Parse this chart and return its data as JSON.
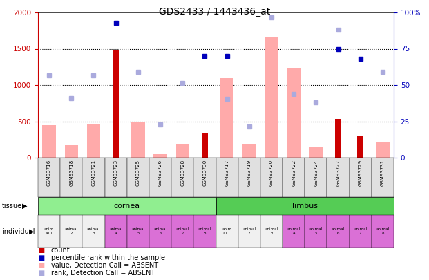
{
  "title": "GDS2433 / 1443436_at",
  "samples": [
    "GSM93716",
    "GSM93718",
    "GSM93721",
    "GSM93723",
    "GSM93725",
    "GSM93726",
    "GSM93728",
    "GSM93730",
    "GSM93717",
    "GSM93719",
    "GSM93720",
    "GSM93722",
    "GSM93724",
    "GSM93727",
    "GSM93729",
    "GSM93731"
  ],
  "pink_bars": [
    450,
    175,
    460,
    null,
    490,
    50,
    185,
    null,
    1100,
    185,
    1660,
    1230,
    155,
    null,
    null,
    220
  ],
  "red_bars": [
    null,
    null,
    null,
    1490,
    null,
    null,
    null,
    340,
    null,
    null,
    null,
    null,
    null,
    530,
    300,
    null
  ],
  "blue_dots_pct": [
    null,
    null,
    null,
    93,
    null,
    null,
    null,
    70,
    70,
    null,
    null,
    null,
    null,
    75,
    68,
    null
  ],
  "lightblue_dots": [
    1130,
    820,
    1130,
    null,
    1185,
    460,
    1025,
    null,
    810,
    430,
    1930,
    880,
    760,
    1760,
    null,
    1185
  ],
  "individual_labels": [
    "anim\nal 1",
    "animal\n2",
    "animal\n3",
    "animal\n4",
    "animal\n5",
    "animal\n6",
    "animal\n7",
    "animal\n8",
    "anim\nal 1",
    "animal\n2",
    "animal\n3",
    "animal\n4",
    "animal\n5",
    "animal\n6",
    "animal\n7",
    "animal\n8"
  ],
  "individual_colors": [
    "#f0f0f0",
    "#f0f0f0",
    "#f0f0f0",
    "#da70d6",
    "#da70d6",
    "#da70d6",
    "#da70d6",
    "#da70d6",
    "#f0f0f0",
    "#f0f0f0",
    "#f0f0f0",
    "#da70d6",
    "#da70d6",
    "#da70d6",
    "#da70d6",
    "#da70d6"
  ],
  "ylim_left": [
    0,
    2000
  ],
  "ylim_right": [
    0,
    100
  ],
  "yticks_left": [
    0,
    500,
    1000,
    1500,
    2000
  ],
  "yticks_right": [
    0,
    25,
    50,
    75,
    100
  ],
  "color_red": "#cc0000",
  "color_pink": "#ffaaaa",
  "color_blue": "#0000bb",
  "color_lightblue": "#aaaadd",
  "color_green": "#90EE90",
  "color_bg": "#ffffff"
}
